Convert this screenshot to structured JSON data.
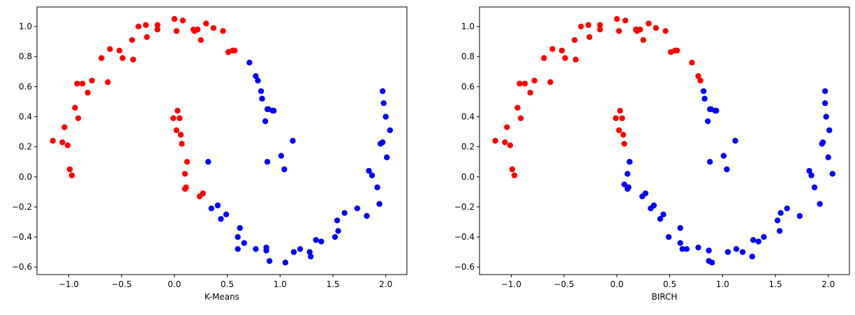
{
  "colors": {
    "cluster_0": "#ff0000",
    "cluster_1": "#0000ff",
    "axes": "#000000"
  },
  "chart_data": [
    {
      "type": "scatter",
      "title": "",
      "xlabel": "K-Means",
      "ylabel": "",
      "xlim": [
        -1.3,
        2.2
      ],
      "ylim": [
        -0.65,
        1.13
      ],
      "xticks": [
        -1.0,
        -0.5,
        0.0,
        0.5,
        1.0,
        1.5,
        2.0
      ],
      "yticks": [
        -0.6,
        -0.4,
        -0.2,
        0.0,
        0.2,
        0.4,
        0.6,
        0.8,
        1.0
      ],
      "xtick_labels": [
        "−1.0",
        "−0.5",
        "0.0",
        "0.5",
        "1.0",
        "1.5",
        "2.0"
      ],
      "ytick_labels": [
        "−0.6",
        "−0.4",
        "−0.2",
        "0.0",
        "0.2",
        "0.4",
        "0.6",
        "0.8",
        "1.0"
      ],
      "grid": false,
      "series": [
        {
          "color": "#ff0000",
          "x": [
            -1.15,
            -1.06,
            -1.04,
            -1.01,
            -0.99,
            -0.97,
            -0.94,
            -0.92,
            -0.91,
            -0.87,
            -0.82,
            -0.78,
            -0.69,
            -0.63,
            -0.61,
            -0.52,
            -0.49,
            -0.4,
            -0.39,
            -0.34,
            -0.27,
            -0.26,
            -0.16,
            -0.16,
            0.0,
            0.02,
            0.05,
            0.08,
            0.18,
            0.19,
            0.22,
            0.25,
            0.3,
            0.37,
            0.46,
            0.51,
            0.55,
            0.57,
            -0.01,
            0.02,
            0.03,
            0.06,
            0.07,
            0.1,
            0.11,
            0.12,
            0.1,
            0.24,
            0.27
          ],
          "y": [
            0.24,
            0.23,
            0.33,
            0.21,
            0.05,
            0.01,
            0.46,
            0.62,
            0.39,
            0.62,
            0.56,
            0.64,
            0.79,
            0.63,
            0.85,
            0.84,
            0.79,
            0.91,
            0.78,
            1.0,
            1.01,
            0.93,
            1.01,
            0.98,
            1.05,
            0.97,
            0.39,
            1.04,
            0.98,
            0.97,
            0.98,
            0.91,
            1.02,
            0.99,
            0.97,
            0.83,
            0.84,
            0.84,
            0.39,
            0.31,
            0.44,
            0.28,
            0.22,
            0.02,
            -0.07,
            0.1,
            -0.08,
            -0.13,
            -0.11
          ]
        },
        {
          "color": "#0000ff",
          "x": [
            0.71,
            0.77,
            0.79,
            0.82,
            0.83,
            0.86,
            0.88,
            0.89,
            0.93,
            0.94,
            1.01,
            0.88,
            1.04,
            1.12,
            0.32,
            0.35,
            0.41,
            0.44,
            0.49,
            0.6,
            0.62,
            0.6,
            0.66,
            0.77,
            0.87,
            0.87,
            0.9,
            1.05,
            1.13,
            1.19,
            1.28,
            1.29,
            1.34,
            1.39,
            1.52,
            1.54,
            1.55,
            1.61,
            1.73,
            1.82,
            1.84,
            1.87,
            1.92,
            1.94,
            1.95,
            1.97,
            1.97,
            1.98,
            2.0,
            2.01,
            2.04
          ],
          "y": [
            0.76,
            0.67,
            0.64,
            0.57,
            0.52,
            0.37,
            0.45,
            0.45,
            0.44,
            0.44,
            0.14,
            0.1,
            0.05,
            0.24,
            0.1,
            -0.21,
            -0.19,
            -0.28,
            -0.25,
            -0.4,
            -0.34,
            -0.48,
            -0.44,
            -0.48,
            -0.47,
            -0.49,
            -0.56,
            -0.57,
            -0.5,
            -0.48,
            -0.5,
            -0.53,
            -0.42,
            -0.43,
            -0.4,
            -0.29,
            -0.36,
            -0.24,
            -0.21,
            -0.26,
            0.04,
            0.01,
            -0.07,
            -0.18,
            0.22,
            0.23,
            0.57,
            0.49,
            0.4,
            0.13,
            0.31
          ]
        }
      ]
    },
    {
      "type": "scatter",
      "title": "",
      "xlabel": "BIRCH",
      "ylabel": "",
      "xlim": [
        -1.3,
        2.2
      ],
      "ylim": [
        -0.65,
        1.13
      ],
      "xticks": [
        -1.0,
        -0.5,
        0.0,
        0.5,
        1.0,
        1.5,
        2.0
      ],
      "yticks": [
        -0.6,
        -0.4,
        -0.2,
        0.0,
        0.2,
        0.4,
        0.6,
        0.8,
        1.0
      ],
      "xtick_labels": [
        "−1.0",
        "−0.5",
        "0.0",
        "0.5",
        "1.0",
        "1.5",
        "2.0"
      ],
      "ytick_labels": [
        "−0.6",
        "−0.4",
        "−0.2",
        "0.0",
        "0.2",
        "0.4",
        "0.6",
        "0.8",
        "1.0"
      ],
      "grid": false,
      "series": [
        {
          "color": "#ff0000",
          "x": [
            -1.15,
            -1.06,
            -1.04,
            -1.01,
            -0.99,
            -0.97,
            -0.94,
            -0.92,
            -0.91,
            -0.87,
            -0.82,
            -0.78,
            -0.69,
            -0.63,
            -0.61,
            -0.52,
            -0.49,
            -0.4,
            -0.39,
            -0.34,
            -0.27,
            -0.26,
            -0.16,
            -0.16,
            0.0,
            0.02,
            0.05,
            0.08,
            0.18,
            0.19,
            0.22,
            0.25,
            0.3,
            0.37,
            0.46,
            0.51,
            0.55,
            0.57,
            0.71,
            0.77,
            0.79,
            -0.01,
            0.02,
            0.03,
            0.06,
            0.07
          ],
          "y": [
            0.24,
            0.23,
            0.33,
            0.21,
            0.05,
            0.01,
            0.46,
            0.62,
            0.39,
            0.62,
            0.56,
            0.64,
            0.79,
            0.63,
            0.85,
            0.84,
            0.79,
            0.91,
            0.78,
            1.0,
            1.01,
            0.93,
            1.01,
            0.98,
            1.05,
            0.97,
            0.39,
            1.04,
            0.98,
            0.97,
            0.98,
            0.91,
            1.02,
            0.99,
            0.97,
            0.83,
            0.84,
            0.84,
            0.76,
            0.67,
            0.64,
            0.39,
            0.31,
            0.44,
            0.28,
            0.22
          ]
        },
        {
          "color": "#0000ff",
          "x": [
            0.82,
            0.83,
            0.86,
            0.88,
            0.89,
            0.93,
            0.94,
            1.01,
            0.88,
            1.04,
            1.12,
            0.1,
            0.11,
            0.12,
            0.1,
            0.24,
            0.27,
            0.32,
            0.35,
            0.41,
            0.44,
            0.49,
            0.6,
            0.62,
            0.6,
            0.66,
            0.77,
            0.87,
            0.87,
            0.9,
            1.05,
            1.13,
            1.19,
            1.28,
            1.29,
            1.34,
            1.39,
            1.52,
            1.54,
            1.55,
            1.61,
            1.73,
            1.82,
            1.84,
            1.87,
            1.92,
            1.94,
            1.95,
            1.97,
            1.97,
            1.98,
            2.0,
            2.01,
            2.04,
            0.07,
            0.12
          ],
          "y": [
            0.57,
            0.52,
            0.37,
            0.45,
            0.45,
            0.44,
            0.44,
            0.14,
            0.1,
            0.05,
            0.24,
            0.02,
            -0.07,
            0.1,
            -0.08,
            -0.13,
            -0.11,
            -0.21,
            -0.19,
            -0.28,
            -0.25,
            -0.4,
            -0.34,
            -0.48,
            -0.44,
            -0.48,
            -0.47,
            -0.49,
            -0.56,
            -0.57,
            -0.5,
            -0.48,
            -0.5,
            -0.53,
            -0.42,
            -0.43,
            -0.4,
            -0.29,
            -0.36,
            -0.24,
            -0.21,
            -0.26,
            0.04,
            0.01,
            -0.07,
            -0.18,
            0.22,
            0.23,
            0.57,
            0.49,
            0.4,
            0.13,
            0.31,
            0.02,
            -0.05,
            0.1
          ]
        }
      ]
    }
  ]
}
